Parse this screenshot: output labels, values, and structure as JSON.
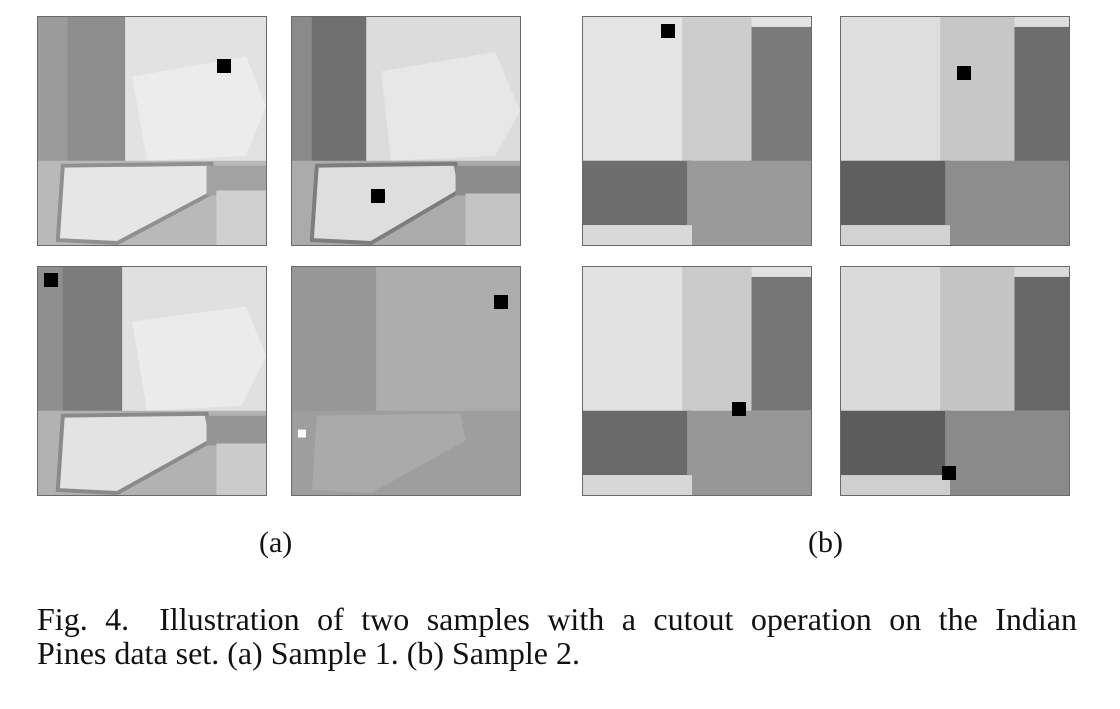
{
  "figure": {
    "sublabels": {
      "a": "(a)",
      "b": "(b)"
    },
    "caption": {
      "fig_label": "Fig. 4.",
      "line1": "Illustration of two samples with a cutout operation on the Indian",
      "line2": "Pines data set. (a) Sample 1. (b) Sample 2."
    }
  },
  "colors": {
    "cutout": "#000000"
  }
}
